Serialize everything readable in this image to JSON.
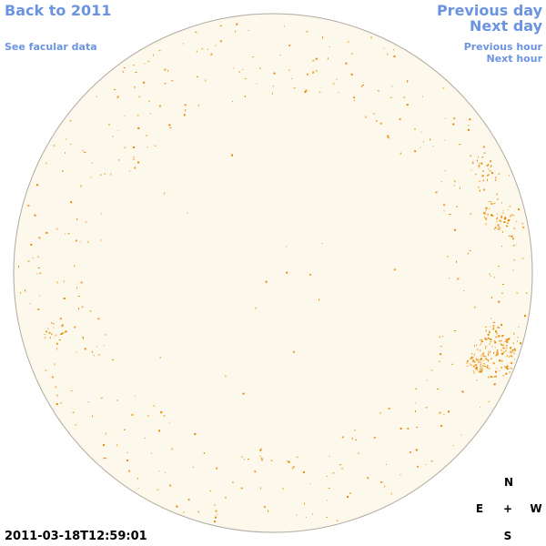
{
  "navigation": {
    "back": "Back to 2011",
    "facular": "See facular data",
    "previous_day": "Previous day",
    "next_day": "Next day",
    "previous_hour": "Previous hour",
    "next_hour": "Next hour"
  },
  "timestamp": "2011-03-18T12:59:01",
  "compass": {
    "north": "N",
    "east": "E",
    "center": "+",
    "west": "W",
    "south": "S"
  }
}
